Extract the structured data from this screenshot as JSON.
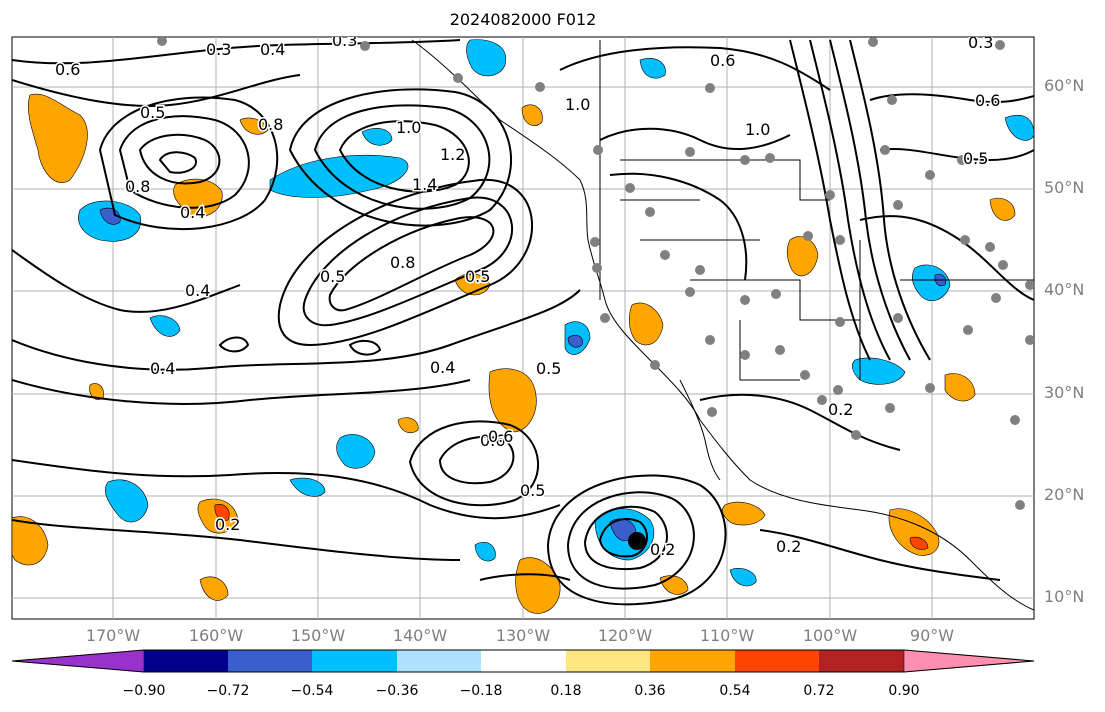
{
  "title": "2024082000 F012",
  "lat_labels": [
    "60°N",
    "50°N",
    "40°N",
    "30°N",
    "20°N",
    "10°N"
  ],
  "lon_labels": [
    "170°W",
    "160°W",
    "150°W",
    "140°W",
    "130°W",
    "120°W",
    "110°W",
    "100°W",
    "90°W"
  ],
  "colorbar": {
    "ticks": [
      "−0.90",
      "−0.72",
      "−0.54",
      "−0.36",
      "−0.18",
      "0.18",
      "0.36",
      "0.54",
      "0.72",
      "0.90"
    ],
    "colors": [
      "#9932cc",
      "#00008b",
      "#3a5fcd",
      "#00bfff",
      "#b0e2ff",
      "#ffffff",
      "#ffe680",
      "#ffa500",
      "#ff4500",
      "#b22222",
      "#ff8fb0"
    ]
  },
  "contour_labels": [
    "0.3",
    "0.4",
    "0.3",
    "0.6",
    "0.5",
    "0.8",
    "1.0",
    "1.2",
    "1.4",
    "0.4",
    "0.5",
    "0.8",
    "1.0",
    "0.6",
    "0.5",
    "0.4",
    "0.5",
    "0.6",
    "0.5",
    "0.2",
    "0.2",
    "0.4",
    "0.6",
    "0.2",
    "0.8",
    "1.0",
    "0.6",
    "0.5",
    "0.4",
    "0.2",
    "0.3"
  ]
}
